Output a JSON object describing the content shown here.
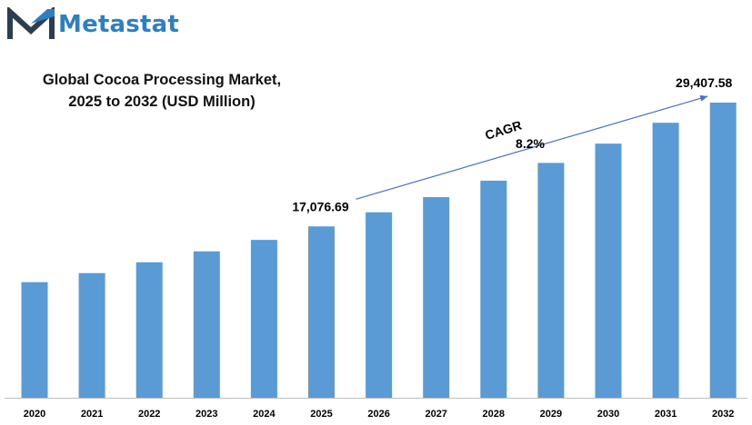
{
  "brand": {
    "name": "Metastat",
    "logo_icon": "metastat-m-logo-icon"
  },
  "chart_data": {
    "type": "bar",
    "title_lines": [
      "Global Cocoa Processing Market,",
      "2025 to 2032 (USD Million)"
    ],
    "categories": [
      "2020",
      "2021",
      "2022",
      "2023",
      "2024",
      "2025",
      "2026",
      "2027",
      "2028",
      "2029",
      "2030",
      "2031",
      "2032"
    ],
    "values": [
      11520,
      12420,
      13500,
      14590,
      15730,
      17076.69,
      18480,
      19990,
      21630,
      23400,
      25320,
      27400,
      29407.58
    ],
    "data_labels": [
      {
        "category": "2025",
        "text": "17,076.69"
      },
      {
        "category": "2032",
        "text": "29,407.58"
      }
    ],
    "annotation": {
      "label": "CAGR",
      "value": "8.2%",
      "from": "2025",
      "to": "2032"
    },
    "ylim": [
      0,
      29407.58
    ],
    "grid": false,
    "legend": "none",
    "colors": {
      "bar": "#5b9bd5",
      "arrow": "#4472c4",
      "axis": "#bfbfbf"
    }
  }
}
